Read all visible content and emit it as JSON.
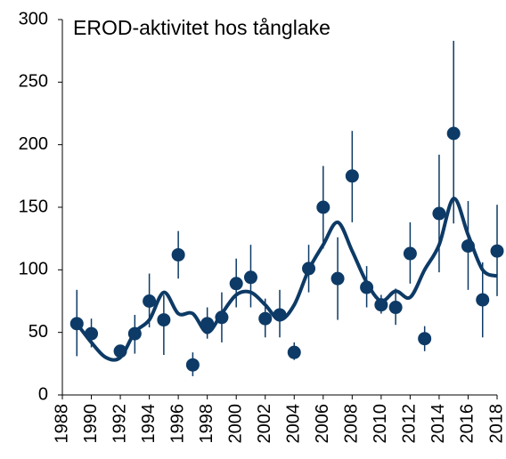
{
  "chart_data": {
    "type": "scatter",
    "title": "EROD-aktivitet hos tånglake",
    "x": [
      1989,
      1990,
      1992,
      1993,
      1994,
      1995,
      1996,
      1997,
      1998,
      1999,
      2000,
      2001,
      2002,
      2003,
      2004,
      2005,
      2006,
      2007,
      2008,
      2009,
      2010,
      2011,
      2012,
      2013,
      2014,
      2015,
      2016,
      2017,
      2018
    ],
    "values": [
      57,
      49,
      35,
      49,
      75,
      60,
      112,
      24,
      57,
      62,
      89,
      94,
      61,
      64,
      34,
      101,
      150,
      93,
      175,
      86,
      72,
      70,
      113,
      45,
      145,
      209,
      119,
      76,
      115
    ],
    "lower": [
      31,
      38,
      30,
      33,
      54,
      32,
      93,
      15,
      45,
      42,
      70,
      70,
      46,
      46,
      28,
      82,
      117,
      60,
      138,
      70,
      65,
      56,
      89,
      35,
      98,
      137,
      84,
      46,
      79
    ],
    "upper": [
      84,
      61,
      40,
      64,
      97,
      80,
      131,
      34,
      70,
      82,
      109,
      120,
      77,
      84,
      42,
      120,
      183,
      126,
      211,
      103,
      80,
      85,
      138,
      55,
      192,
      283,
      155,
      106,
      152
    ],
    "color": "#0d3a66",
    "trend": {
      "x": [
        1989,
        1990,
        1991,
        1992,
        1993,
        1994,
        1995,
        1996,
        1997,
        1998,
        1999,
        2000,
        2001,
        2002,
        2003,
        2004,
        2005,
        2006,
        2007,
        2008,
        2009,
        2010,
        2011,
        2012,
        2013,
        2014,
        2015,
        2016,
        2017,
        2018
      ],
      "values": [
        57,
        42,
        30,
        30,
        50,
        60,
        82,
        65,
        65,
        50,
        65,
        80,
        82,
        72,
        60,
        72,
        100,
        120,
        138,
        115,
        90,
        75,
        83,
        78,
        100,
        120,
        157,
        128,
        100,
        95
      ],
      "color": "#0d3a66"
    },
    "xlim": [
      1988,
      2018
    ],
    "xticks": [
      1988,
      1990,
      1992,
      1994,
      1996,
      1998,
      2000,
      2002,
      2004,
      2006,
      2008,
      2010,
      2012,
      2014,
      2016,
      2018
    ],
    "ylim": [
      0,
      300
    ],
    "yticks": [
      0,
      50,
      100,
      150,
      200,
      250,
      300
    ]
  }
}
